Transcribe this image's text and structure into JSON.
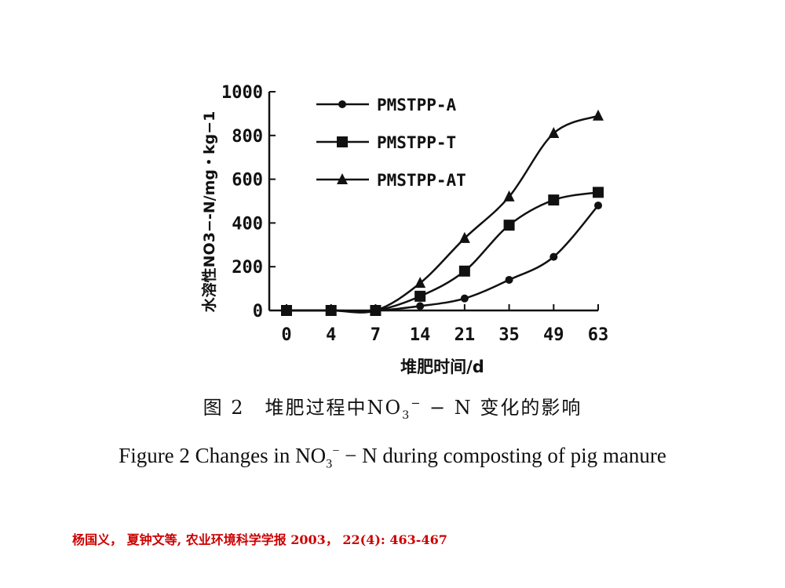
{
  "chart_data": {
    "type": "line",
    "x": [
      "0",
      "4",
      "7",
      "14",
      "21",
      "35",
      "49",
      "63"
    ],
    "ylim": [
      0,
      1000
    ],
    "yticks": [
      "0",
      "200",
      "400",
      "600",
      "800",
      "1000"
    ],
    "ylabel": "水溶性NO3−-N/mg・kg−1",
    "xlabel": "堆肥时间/d",
    "legend_position": "top-left",
    "series": [
      {
        "name": "PMSTPP-A",
        "marker": "circle",
        "values": [
          0,
          0,
          0,
          20,
          55,
          140,
          245,
          480
        ]
      },
      {
        "name": "PMSTPP-T",
        "marker": "square",
        "values": [
          0,
          0,
          0,
          65,
          180,
          390,
          505,
          540
        ]
      },
      {
        "name": "PMSTPP-AT",
        "marker": "triangle",
        "values": [
          0,
          0,
          0,
          125,
          330,
          520,
          810,
          890
        ]
      }
    ]
  },
  "caption": {
    "cn_prefix": "图 2　堆肥过程中NO",
    "cn_suffix": " − N 变化的影响",
    "en_prefix": "Figure 2  Changes in NO",
    "en_suffix": " − N during composting of pig manure",
    "sub": "3",
    "sup": "−"
  },
  "citation": "杨国义， 夏钟文等, 农业环境科学学报  2003， 22(4): 463-467",
  "colors": {
    "line": "#111111",
    "citation": "#cc0000"
  }
}
